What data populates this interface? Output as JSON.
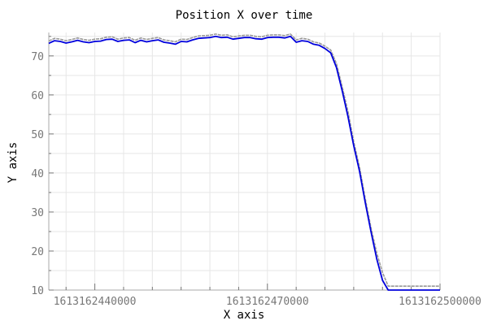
{
  "chart_data": {
    "type": "line",
    "title": "Position X over time",
    "xlabel": "X axis",
    "ylabel": "Y axis",
    "xlim": [
      1613162432000,
      1613162500000
    ],
    "ylim": [
      10,
      76
    ],
    "x_ticks": [
      1613162440000,
      1613162470000,
      1613162500000
    ],
    "x_tick_labels": [
      "1613162440000",
      "1613162470000",
      "1613162500000"
    ],
    "y_ticks": [
      10,
      20,
      30,
      40,
      50,
      60,
      70
    ],
    "y_tick_labels": [
      "10",
      "20",
      "30",
      "40",
      "50",
      "60",
      "70"
    ],
    "grid": true,
    "series": [
      {
        "color": "#999999",
        "x": [
          1613162432000,
          1613162432400,
          1613162433000,
          1613162434000,
          1613162435000,
          1613162436000,
          1613162437000,
          1613162438000,
          1613162439000,
          1613162440000,
          1613162441000,
          1613162442000,
          1613162443000,
          1613162444000,
          1613162445000,
          1613162446000,
          1613162447000,
          1613162448000,
          1613162449000,
          1613162450000,
          1613162451000,
          1613162452000,
          1613162453000,
          1613162454000,
          1613162455000,
          1613162456000,
          1613162457000,
          1613162458000,
          1613162459000,
          1613162460000,
          1613162461000,
          1613162462000,
          1613162463000,
          1613162464000,
          1613162465000,
          1613162466000,
          1613162467000,
          1613162468000,
          1613162469000,
          1613162470000,
          1613162471000,
          1613162472000,
          1613162473000,
          1613162474000,
          1613162475000,
          1613162476000,
          1613162477000,
          1613162478000,
          1613162479000,
          1613162480000,
          1613162481000,
          1613162482000,
          1613162483000,
          1613162484000,
          1613162485000,
          1613162486000,
          1613162487000,
          1613162488000,
          1613162489000,
          1613162490000,
          1613162491000,
          1613162492000,
          1613162493000,
          1613162494000,
          1613162495000,
          1613162496000,
          1613162497000,
          1613162498000,
          1613162499000,
          1613162500000
        ],
        "values": [
          73.8,
          74.1,
          74.5,
          74.3,
          73.9,
          74.2,
          74.6,
          74.2,
          74.0,
          74.3,
          74.4,
          74.8,
          74.9,
          74.3,
          74.6,
          74.7,
          74.0,
          74.6,
          74.2,
          74.5,
          74.7,
          74.1,
          73.9,
          73.6,
          74.3,
          74.2,
          74.7,
          75.1,
          75.2,
          75.3,
          75.6,
          75.3,
          75.4,
          74.9,
          75.1,
          75.3,
          75.3,
          75.0,
          74.9,
          75.3,
          75.4,
          75.4,
          75.2,
          75.6,
          74.1,
          74.5,
          74.3,
          73.6,
          73.3,
          72.5,
          71.5,
          68.0,
          62.0,
          55.8,
          48.0,
          41.5,
          33.5,
          26.0,
          19.5,
          14.5,
          11.0,
          11.0,
          11.0,
          11.0,
          11.0,
          11.0,
          11.0,
          11.0,
          11.0,
          11.0
        ]
      },
      {
        "color": "#0000dd",
        "x": [
          1613162432000,
          1613162432400,
          1613162433000,
          1613162434000,
          1613162435000,
          1613162436000,
          1613162437000,
          1613162438000,
          1613162439000,
          1613162440000,
          1613162441000,
          1613162442000,
          1613162443000,
          1613162444000,
          1613162445000,
          1613162446000,
          1613162447000,
          1613162448000,
          1613162449000,
          1613162450000,
          1613162451000,
          1613162452000,
          1613162453000,
          1613162454000,
          1613162455000,
          1613162456000,
          1613162457000,
          1613162458000,
          1613162459000,
          1613162460000,
          1613162461000,
          1613162462000,
          1613162463000,
          1613162464000,
          1613162465000,
          1613162466000,
          1613162467000,
          1613162468000,
          1613162469000,
          1613162470000,
          1613162471000,
          1613162472000,
          1613162473000,
          1613162474000,
          1613162475000,
          1613162476000,
          1613162477000,
          1613162478000,
          1613162479000,
          1613162480000,
          1613162481000,
          1613162482000,
          1613162483000,
          1613162484000,
          1613162485000,
          1613162486000,
          1613162487000,
          1613162488000,
          1613162489000,
          1613162490000,
          1613162491000,
          1613162492000,
          1613162493000,
          1613162494000,
          1613162495000,
          1613162496000,
          1613162497000,
          1613162498000,
          1613162499000,
          1613162500000
        ],
        "values": [
          73.2,
          73.5,
          73.9,
          73.7,
          73.3,
          73.6,
          74.0,
          73.6,
          73.4,
          73.7,
          73.8,
          74.2,
          74.3,
          73.7,
          74.0,
          74.1,
          73.4,
          74.0,
          73.6,
          73.9,
          74.1,
          73.5,
          73.3,
          73.0,
          73.7,
          73.6,
          74.1,
          74.5,
          74.6,
          74.7,
          75.0,
          74.7,
          74.8,
          74.3,
          74.5,
          74.7,
          74.7,
          74.4,
          74.3,
          74.7,
          74.8,
          74.8,
          74.6,
          75.0,
          73.5,
          73.9,
          73.7,
          73.0,
          72.7,
          71.9,
          70.8,
          67.0,
          61.0,
          54.5,
          47.0,
          40.5,
          32.5,
          25.0,
          18.0,
          12.5,
          10.0,
          10.0,
          10.0,
          10.0,
          10.0,
          10.0,
          10.0,
          10.0,
          10.0,
          10.0
        ]
      }
    ]
  }
}
